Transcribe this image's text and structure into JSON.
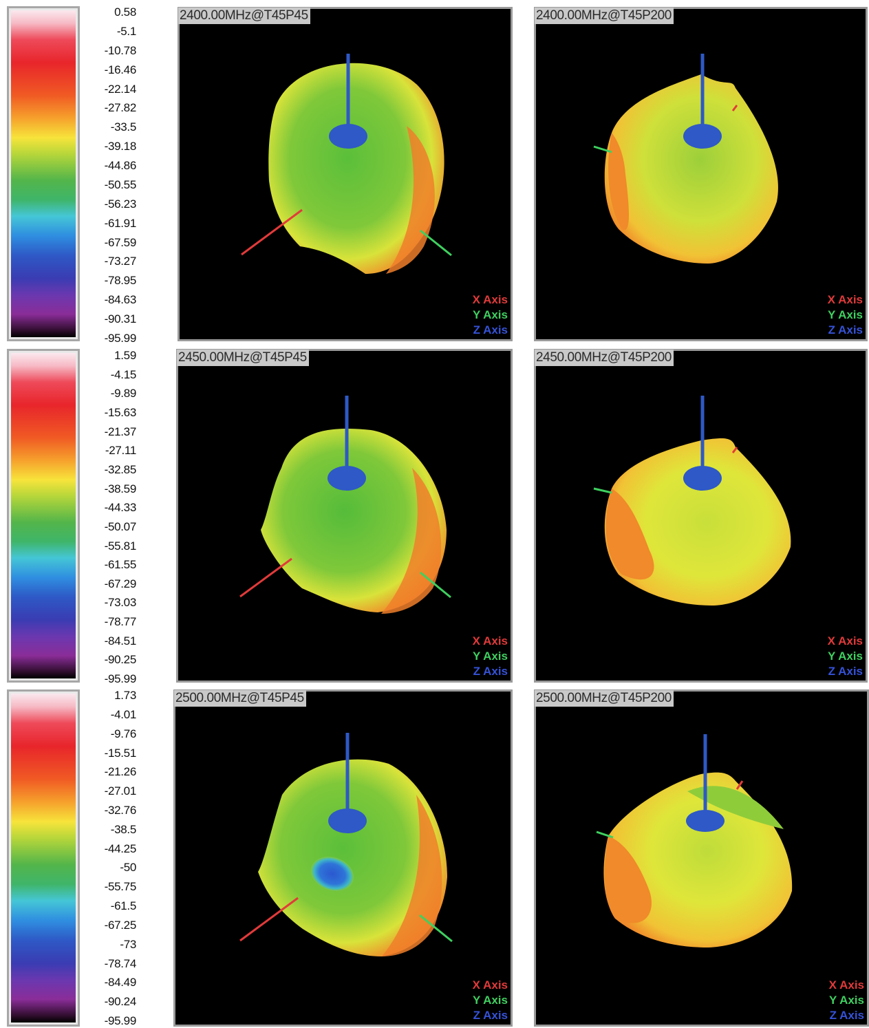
{
  "rows": [
    {
      "scale": [
        "0.58",
        "-5.1",
        "-10.78",
        "-16.46",
        "-22.14",
        "-27.82",
        "-33.5",
        "-39.18",
        "-44.86",
        "-50.55",
        "-56.23",
        "-61.91",
        "-67.59",
        "-73.27",
        "-78.95",
        "-84.63",
        "-90.31",
        "-95.99"
      ],
      "left_title": "2400.00MHz@T45P45",
      "right_title": "2400.00MHz@T45P200"
    },
    {
      "scale": [
        "1.59",
        "-4.15",
        "-9.89",
        "-15.63",
        "-21.37",
        "-27.11",
        "-32.85",
        "-38.59",
        "-44.33",
        "-50.07",
        "-55.81",
        "-61.55",
        "-67.29",
        "-73.03",
        "-78.77",
        "-84.51",
        "-90.25",
        "-95.99"
      ],
      "left_title": "2450.00MHz@T45P45",
      "right_title": "2450.00MHz@T45P200"
    },
    {
      "scale": [
        "1.73",
        "-4.01",
        "-9.76",
        "-15.51",
        "-21.26",
        "-27.01",
        "-32.76",
        "-38.5",
        "-44.25",
        "-50",
        "-55.75",
        "-61.5",
        "-67.25",
        "-73",
        "-78.74",
        "-84.49",
        "-90.24",
        "-95.99"
      ],
      "left_title": "2500.00MHz@T45P45",
      "right_title": "2500.00MHz@T45P200"
    }
  ],
  "legend": {
    "x": "X Axis",
    "y": "Y Axis",
    "z": "Z Axis"
  },
  "colors": {
    "x_axis": "#e23a3a",
    "y_axis": "#3fd060",
    "z_axis": "#3552d8"
  }
}
